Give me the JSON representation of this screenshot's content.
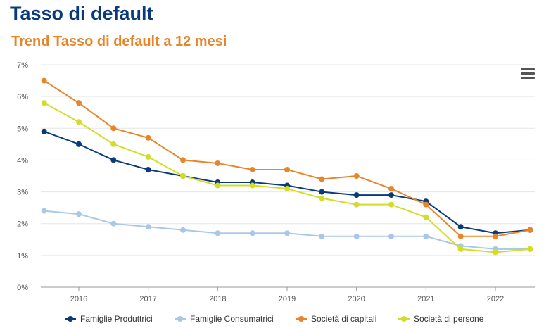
{
  "header": {
    "title": "Tasso di default",
    "subtitle": "Trend Tasso di default a 12 mesi"
  },
  "menu_icon": "hamburger-menu-icon",
  "chart_data": {
    "type": "line",
    "x": [
      2015.5,
      2016,
      2016.5,
      2017,
      2017.5,
      2018,
      2018.5,
      2019,
      2019.5,
      2020,
      2020.5,
      2021,
      2021.5,
      2022,
      2022.5
    ],
    "x_ticks": [
      "2016",
      "2017",
      "2018",
      "2019",
      "2020",
      "2021",
      "2022"
    ],
    "x_tick_values": [
      2016,
      2017,
      2018,
      2019,
      2020,
      2021,
      2022
    ],
    "ylim": [
      0,
      7
    ],
    "y_ticks": [
      "0%",
      "1%",
      "2%",
      "3%",
      "4%",
      "5%",
      "6%",
      "7%"
    ],
    "y_tick_values": [
      0,
      1,
      2,
      3,
      4,
      5,
      6,
      7
    ],
    "grid": "horizontal",
    "legend_position": "bottom",
    "series": [
      {
        "name": "Famiglie Produttrici",
        "color": "#0b3a7a",
        "values": [
          4.9,
          4.5,
          4.0,
          3.7,
          3.5,
          3.3,
          3.3,
          3.2,
          3.0,
          2.9,
          2.9,
          2.7,
          1.9,
          1.7,
          1.8
        ]
      },
      {
        "name": "Famiglie Consumatrici",
        "color": "#a9c8e8",
        "values": [
          2.4,
          2.3,
          2.0,
          1.9,
          1.8,
          1.7,
          1.7,
          1.7,
          1.6,
          1.6,
          1.6,
          1.6,
          1.3,
          1.2,
          1.2
        ]
      },
      {
        "name": "Società di capitali",
        "color": "#e8852a",
        "values": [
          6.5,
          5.8,
          5.0,
          4.7,
          4.0,
          3.9,
          3.7,
          3.7,
          3.4,
          3.5,
          3.1,
          2.6,
          1.6,
          1.6,
          1.8
        ]
      },
      {
        "name": "Società di persone",
        "color": "#d4dc2a",
        "values": [
          5.8,
          5.2,
          4.5,
          4.1,
          3.5,
          3.2,
          3.2,
          3.1,
          2.8,
          2.6,
          2.6,
          2.2,
          1.2,
          1.1,
          1.2
        ]
      }
    ]
  }
}
